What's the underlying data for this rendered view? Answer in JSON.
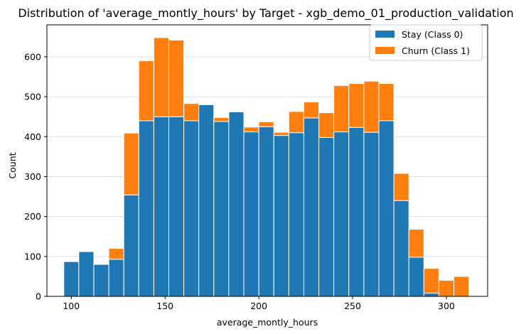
{
  "chart_data": {
    "type": "bar",
    "stacked": true,
    "title": "Distribution of 'average_montly_hours' by Target - xgb_demo_01_production_validation",
    "xlabel": "average_montly_hours",
    "ylabel": "Count",
    "xlim": [
      87,
      322
    ],
    "ylim": [
      0,
      680
    ],
    "grid": "y",
    "legend_position": "top-right",
    "x_ticks": [
      100,
      150,
      200,
      250,
      300
    ],
    "y_ticks": [
      0,
      100,
      200,
      300,
      400,
      500,
      600
    ],
    "bin_edges": [
      96,
      104,
      112,
      120,
      128,
      136,
      144,
      152,
      160,
      168,
      176,
      184,
      192,
      200,
      208,
      216,
      224,
      232,
      240,
      248,
      256,
      264,
      272,
      280,
      288,
      296,
      304,
      312
    ],
    "series": [
      {
        "name": "Stay (Class 0)",
        "color": "#1f77b4",
        "values": [
          87,
          112,
          80,
          93,
          254,
          440,
          450,
          450,
          440,
          480,
          438,
          462,
          412,
          425,
          403,
          410,
          447,
          398,
          412,
          423,
          411,
          440,
          240,
          98,
          8,
          0,
          0
        ]
      },
      {
        "name": "Churn (Class 1)",
        "color": "#ff7f0e",
        "values": [
          0,
          0,
          0,
          27,
          155,
          150,
          198,
          192,
          43,
          0,
          10,
          0,
          12,
          12,
          8,
          53,
          40,
          62,
          116,
          110,
          128,
          93,
          68,
          70,
          62,
          40,
          50
        ]
      }
    ]
  }
}
